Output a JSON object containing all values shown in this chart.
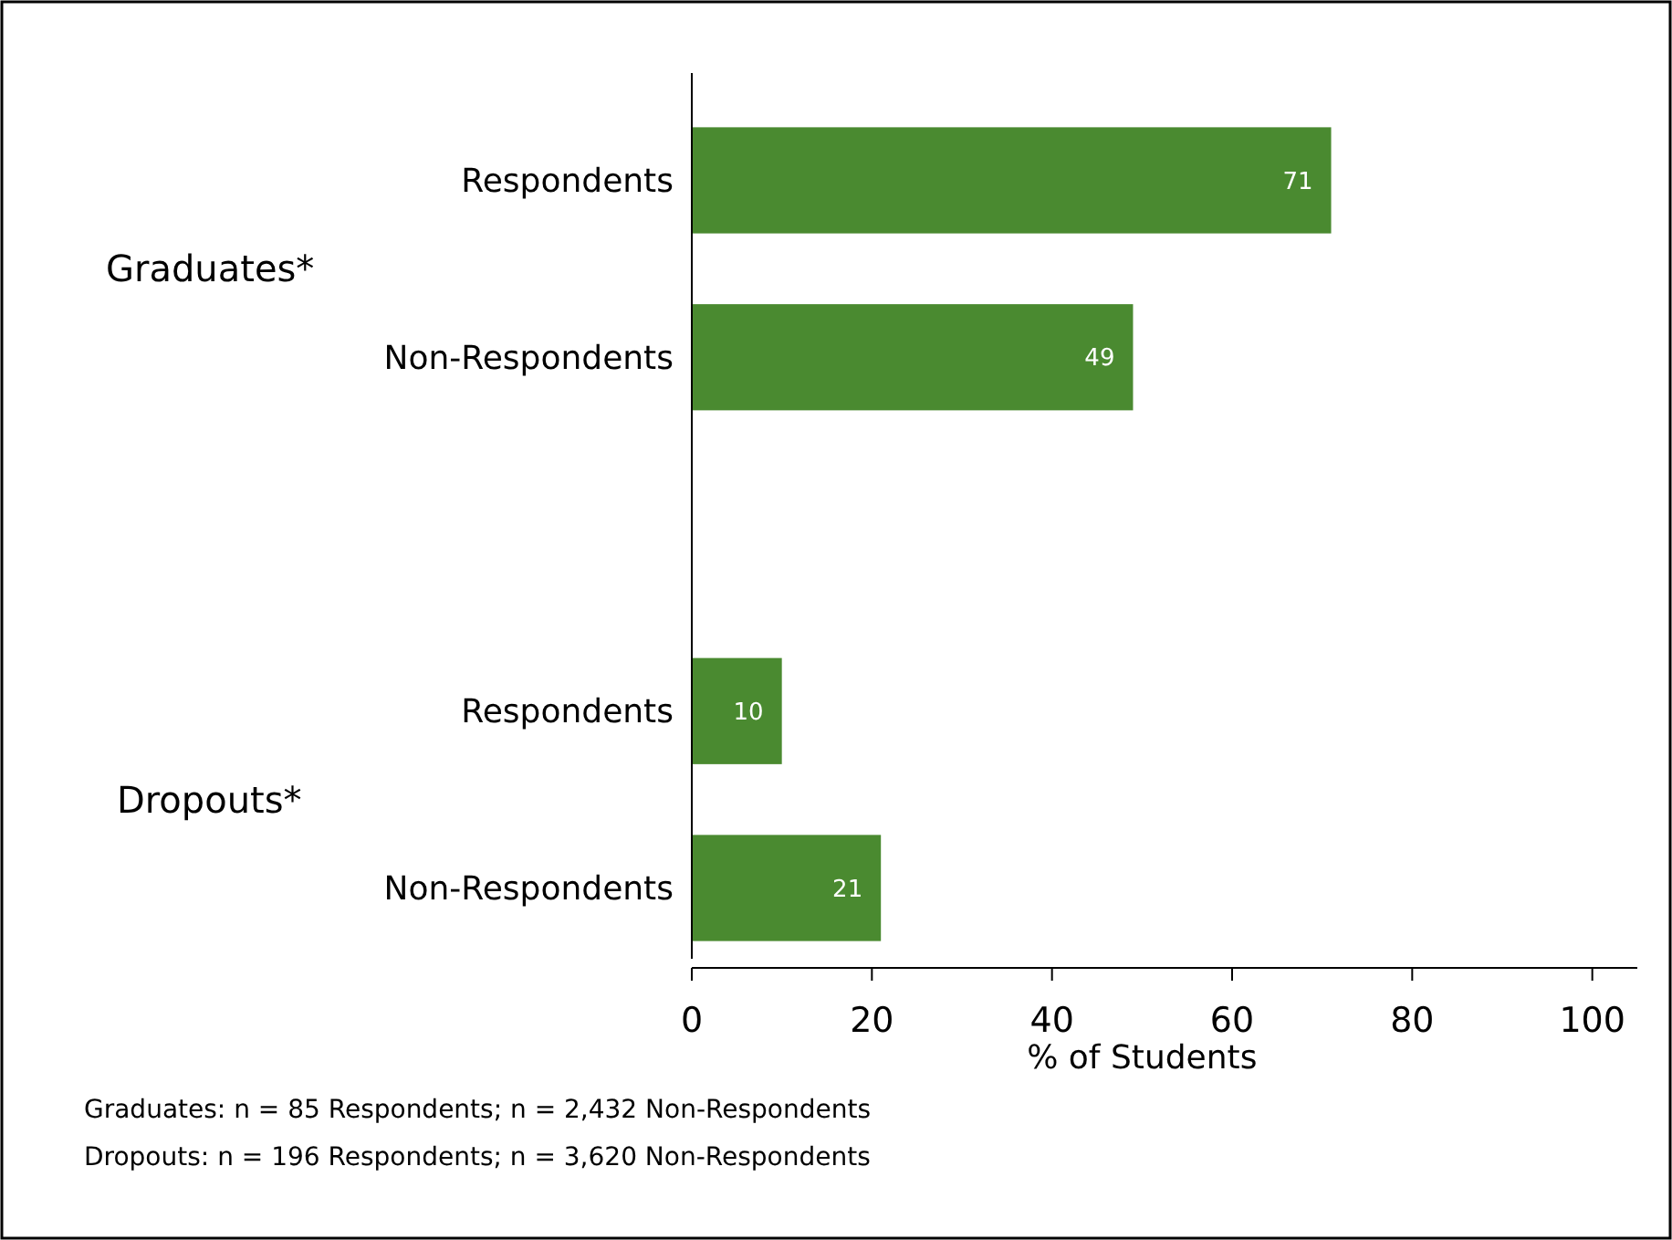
{
  "chart_data": {
    "type": "bar",
    "orientation": "horizontal",
    "categories": [
      "Respondents",
      "Non-Respondents",
      null,
      "Respondents",
      "Non-Respondents"
    ],
    "values": [
      71,
      49,
      null,
      10,
      21
    ],
    "color": "#4a8a30",
    "xlim": [
      0,
      105
    ],
    "xticks": [
      0,
      20,
      40,
      60,
      80,
      100
    ],
    "xlabel": "% of Students",
    "data_labels": true,
    "grid": false,
    "annotations": [
      "Graduates*",
      "Dropouts*",
      "Graduates: n = 85 Respondents; n = 2,432 Non-Respondents",
      "Dropouts: n = 196 Respondents; n = 3,620 Non-Respondents"
    ]
  }
}
